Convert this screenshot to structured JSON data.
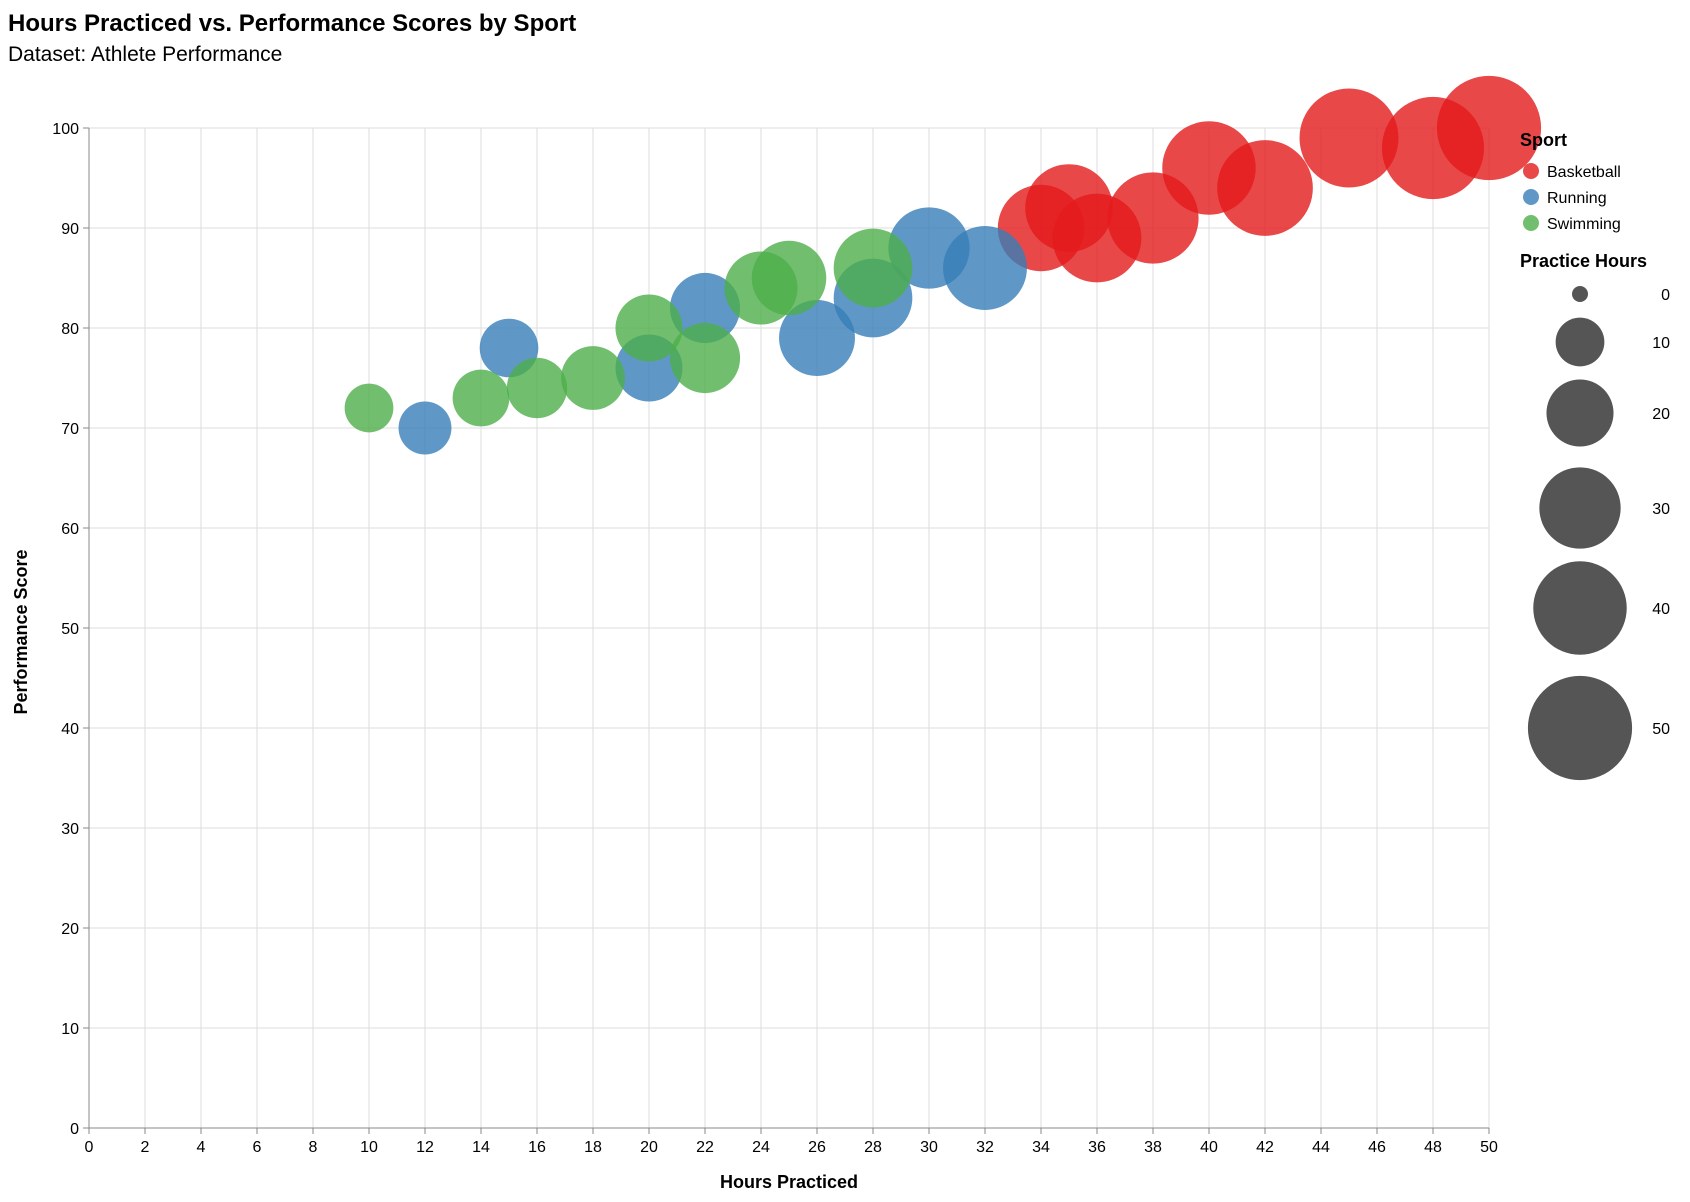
{
  "chart_data": {
    "type": "scatter",
    "title": "Hours Practiced vs. Performance Scores by Sport",
    "subtitle": "Dataset: Athlete Performance",
    "xlabel": "Hours Practiced",
    "ylabel": "Performance Score",
    "xlim": [
      0,
      50
    ],
    "ylim": [
      0,
      100
    ],
    "x_ticks": [
      0,
      2,
      4,
      6,
      8,
      10,
      12,
      14,
      16,
      18,
      20,
      22,
      24,
      26,
      28,
      30,
      32,
      34,
      36,
      38,
      40,
      42,
      44,
      46,
      48,
      50
    ],
    "y_ticks": [
      0,
      10,
      20,
      30,
      40,
      50,
      60,
      70,
      80,
      90,
      100
    ],
    "grid": true,
    "size_encoding": "Practice Hours",
    "legend": {
      "position": "right",
      "color_title": "Sport",
      "size_title": "Practice Hours",
      "size_values": [
        0,
        10,
        20,
        30,
        40,
        50
      ]
    },
    "series": [
      {
        "name": "Basketball",
        "color": "#e41a1c",
        "points": [
          {
            "x": 34,
            "y": 90
          },
          {
            "x": 35,
            "y": 92
          },
          {
            "x": 36,
            "y": 89
          },
          {
            "x": 38,
            "y": 91
          },
          {
            "x": 40,
            "y": 96
          },
          {
            "x": 42,
            "y": 94
          },
          {
            "x": 45,
            "y": 99
          },
          {
            "x": 48,
            "y": 98
          },
          {
            "x": 50,
            "y": 100
          }
        ]
      },
      {
        "name": "Running",
        "color": "#377eb8",
        "points": [
          {
            "x": 12,
            "y": 70
          },
          {
            "x": 15,
            "y": 78
          },
          {
            "x": 20,
            "y": 76
          },
          {
            "x": 22,
            "y": 82
          },
          {
            "x": 26,
            "y": 79
          },
          {
            "x": 28,
            "y": 83
          },
          {
            "x": 30,
            "y": 88
          },
          {
            "x": 32,
            "y": 86
          }
        ]
      },
      {
        "name": "Swimming",
        "color": "#4daf4a",
        "points": [
          {
            "x": 10,
            "y": 72
          },
          {
            "x": 14,
            "y": 73
          },
          {
            "x": 16,
            "y": 74
          },
          {
            "x": 18,
            "y": 75
          },
          {
            "x": 20,
            "y": 80
          },
          {
            "x": 22,
            "y": 77
          },
          {
            "x": 24,
            "y": 84
          },
          {
            "x": 25,
            "y": 85
          },
          {
            "x": 28,
            "y": 86
          }
        ]
      }
    ]
  }
}
